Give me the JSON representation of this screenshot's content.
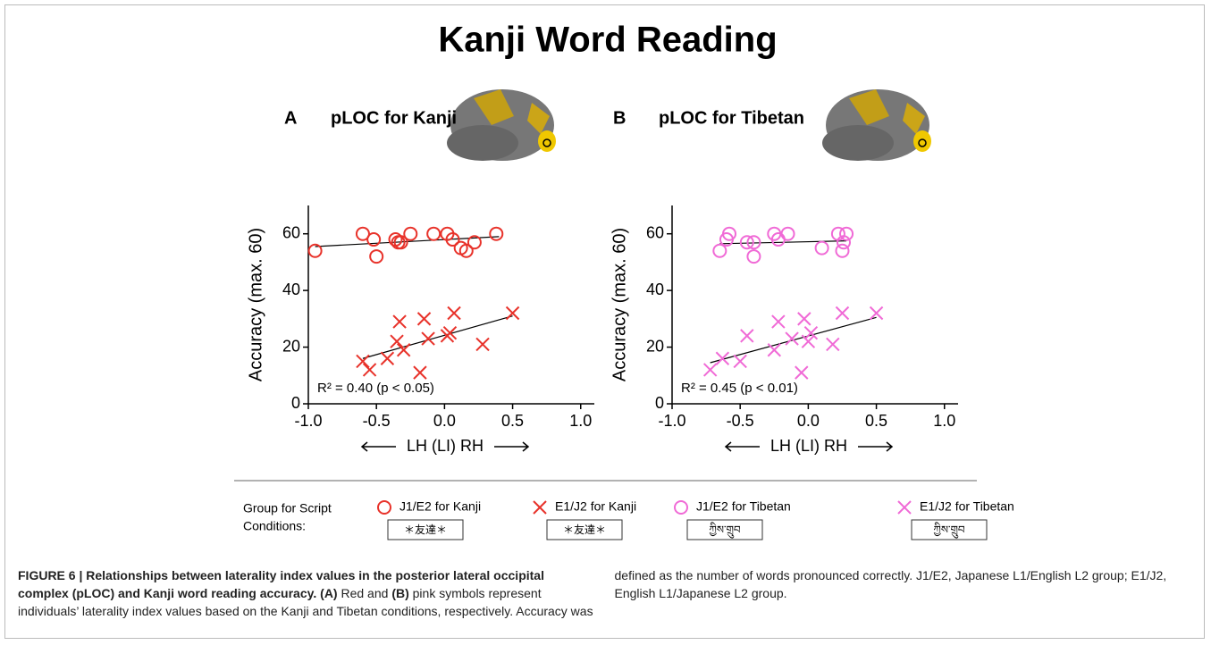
{
  "title": "Kanji Word Reading",
  "legend_title": [
    "Group for Script",
    "Conditions:"
  ],
  "script_samples": [
    "＊友達＊",
    "＊友達＊",
    "ཀྱིས་གྲུབ",
    "ཀྱིས་གྲུབ"
  ],
  "chart_data": [
    {
      "type": "scatter",
      "panel_label": "A",
      "panel_title": "pLOC for Kanji",
      "ylabel": "Accuracy (max. 60)",
      "xlabel": "LH (LI) RH",
      "annotation": "R² = 0.40 (p < 0.05)",
      "xlim": [
        -1.0,
        1.1
      ],
      "ylim": [
        0,
        70
      ],
      "xticks": [
        {
          "value": -1.0,
          "label": "-1.0"
        },
        -0.5,
        {
          "value": 0,
          "label": "0.0"
        },
        0.5,
        {
          "value": 1.0,
          "label": "1.0"
        }
      ],
      "yticks": [
        0,
        20,
        40,
        60
      ],
      "series": [
        {
          "name": "J1/E2 for Kanji",
          "marker": "o",
          "color": "#e8322a",
          "x": [
            -0.95,
            -0.6,
            -0.52,
            -0.5,
            -0.36,
            -0.34,
            -0.32,
            -0.25,
            -0.08,
            0.02,
            0.06,
            0.12,
            0.16,
            0.22,
            0.38
          ],
          "values": [
            54,
            60,
            58,
            52,
            58,
            57,
            57,
            60,
            60,
            60,
            58,
            55,
            54,
            57,
            60
          ]
        },
        {
          "name": "E1/J2 for Kanji",
          "marker": "x",
          "color": "#e8322a",
          "x": [
            -0.6,
            -0.55,
            -0.42,
            -0.35,
            -0.33,
            -0.3,
            -0.18,
            -0.15,
            -0.12,
            0.02,
            0.04,
            0.07,
            0.28,
            0.5
          ],
          "values": [
            15,
            12,
            16,
            22,
            29,
            19,
            11,
            30,
            23,
            24,
            25,
            32,
            21,
            32
          ]
        }
      ],
      "fits": [
        {
          "x": [
            -0.95,
            0.4
          ],
          "y": [
            55.5,
            59
          ]
        },
        {
          "x": [
            -0.6,
            0.5
          ],
          "y": [
            16,
            31
          ]
        }
      ]
    },
    {
      "type": "scatter",
      "panel_label": "B",
      "panel_title": "pLOC for Tibetan",
      "ylabel": "Accuracy (max. 60)",
      "xlabel": "LH (LI) RH",
      "annotation": "R² = 0.45 (p < 0.01)",
      "xlim": [
        -1.0,
        1.1
      ],
      "ylim": [
        0,
        70
      ],
      "xticks": [
        {
          "value": -1.0,
          "label": "-1.0"
        },
        -0.5,
        {
          "value": 0,
          "label": "0.0"
        },
        0.5,
        {
          "value": 1.0,
          "label": "1.0"
        }
      ],
      "yticks": [
        0,
        20,
        40,
        60
      ],
      "series": [
        {
          "name": "J1/E2 for Tibetan",
          "marker": "o",
          "color": "#f06ad6",
          "x": [
            -0.65,
            -0.6,
            -0.58,
            -0.45,
            -0.4,
            -0.4,
            -0.25,
            -0.22,
            -0.15,
            0.1,
            0.22,
            0.25,
            0.26,
            0.28
          ],
          "values": [
            54,
            58,
            60,
            57,
            57,
            52,
            60,
            58,
            60,
            55,
            60,
            54,
            57,
            60
          ]
        },
        {
          "name": "E1/J2 for Tibetan",
          "marker": "x",
          "color": "#f06ad6",
          "x": [
            -0.72,
            -0.63,
            -0.5,
            -0.45,
            -0.25,
            -0.22,
            -0.12,
            -0.05,
            -0.03,
            0.0,
            0.02,
            0.18,
            0.25,
            0.5
          ],
          "values": [
            12,
            16,
            15,
            24,
            19,
            29,
            23,
            11,
            30,
            22,
            25,
            21,
            32,
            32
          ]
        }
      ],
      "fits": [
        {
          "x": [
            -0.65,
            0.28
          ],
          "y": [
            56.5,
            57.5
          ]
        },
        {
          "x": [
            -0.72,
            0.5
          ],
          "y": [
            14.5,
            30.5
          ]
        }
      ]
    }
  ],
  "caption": [
    "FIGURE 6 | Relationships between laterality index values in the posterior lateral occipital complex (pLOC) and Kanji word reading accuracy.",
    "(A)",
    " Red and ",
    "(B)",
    " pink symbols represent individuals’ laterality index values based on the Kanji and Tibetan conditions, respectively. Accuracy was defined as the number of words pronounced correctly. J1/E2, Japanese L1/English L2 group; E1/J2, English L1/Japanese L2 group."
  ]
}
